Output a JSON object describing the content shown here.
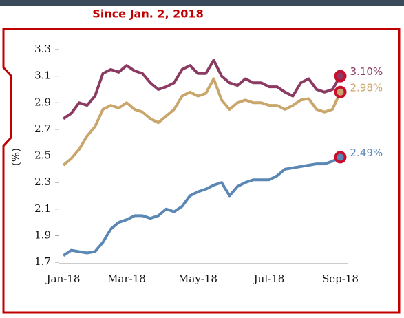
{
  "chart_data": {
    "type": "line",
    "title": "Since Jan. 2, 2018",
    "y_label": "(%)",
    "categories": [
      "Jan-18",
      null,
      null,
      null,
      null,
      null,
      null,
      null,
      "Mar-18",
      null,
      null,
      null,
      null,
      null,
      null,
      null,
      null,
      "May-18",
      null,
      null,
      null,
      null,
      null,
      null,
      null,
      null,
      "Jul-18",
      null,
      null,
      null,
      null,
      null,
      null,
      null,
      null,
      "Sep-18"
    ],
    "ylim": [
      1.7,
      3.3
    ],
    "yticks": [
      1.7,
      1.9,
      2.1,
      2.3,
      2.5,
      2.7,
      2.9,
      3.1,
      3.3
    ],
    "grid": false,
    "series": [
      {
        "color": "#8b3a62",
        "values": [
          2.78,
          2.82,
          2.9,
          2.88,
          2.95,
          3.12,
          3.15,
          3.13,
          3.18,
          3.14,
          3.12,
          3.05,
          3.0,
          3.02,
          3.05,
          3.15,
          3.18,
          3.12,
          3.12,
          3.22,
          3.1,
          3.05,
          3.03,
          3.08,
          3.05,
          3.05,
          3.02,
          3.02,
          2.98,
          2.95,
          3.05,
          3.08,
          3.0,
          2.98,
          3.0,
          3.1
        ],
        "value_labels": [
          null,
          null,
          null,
          null,
          null,
          null,
          null,
          null,
          null,
          null,
          null,
          null,
          null,
          null,
          null,
          null,
          null,
          null,
          null,
          null,
          null,
          null,
          null,
          null,
          null,
          null,
          null,
          null,
          null,
          null,
          null,
          null,
          null,
          null,
          null,
          "3.10%"
        ]
      },
      {
        "color": "#c9a66b",
        "values": [
          2.43,
          2.48,
          2.55,
          2.65,
          2.72,
          2.85,
          2.88,
          2.86,
          2.9,
          2.85,
          2.83,
          2.78,
          2.75,
          2.8,
          2.85,
          2.95,
          2.98,
          2.95,
          2.97,
          3.08,
          2.92,
          2.85,
          2.9,
          2.92,
          2.9,
          2.9,
          2.88,
          2.88,
          2.85,
          2.88,
          2.92,
          2.93,
          2.85,
          2.83,
          2.85,
          2.98
        ],
        "value_labels": [
          null,
          null,
          null,
          null,
          null,
          null,
          null,
          null,
          null,
          null,
          null,
          null,
          null,
          null,
          null,
          null,
          null,
          null,
          null,
          null,
          null,
          null,
          null,
          null,
          null,
          null,
          null,
          null,
          null,
          null,
          null,
          null,
          null,
          null,
          null,
          "2.98%"
        ]
      },
      {
        "color": "#5b87b5",
        "values": [
          1.75,
          1.79,
          1.78,
          1.77,
          1.78,
          1.85,
          1.95,
          2.0,
          2.02,
          2.05,
          2.05,
          2.03,
          2.05,
          2.1,
          2.08,
          2.12,
          2.2,
          2.23,
          2.25,
          2.28,
          2.3,
          2.2,
          2.27,
          2.3,
          2.32,
          2.32,
          2.32,
          2.35,
          2.4,
          2.41,
          2.42,
          2.43,
          2.44,
          2.44,
          2.46,
          2.49
        ],
        "value_labels": [
          null,
          null,
          null,
          null,
          null,
          null,
          null,
          null,
          null,
          null,
          null,
          null,
          null,
          null,
          null,
          null,
          null,
          null,
          null,
          null,
          null,
          null,
          null,
          null,
          null,
          null,
          null,
          null,
          null,
          null,
          null,
          null,
          null,
          null,
          null,
          "2.49%"
        ]
      }
    ]
  }
}
